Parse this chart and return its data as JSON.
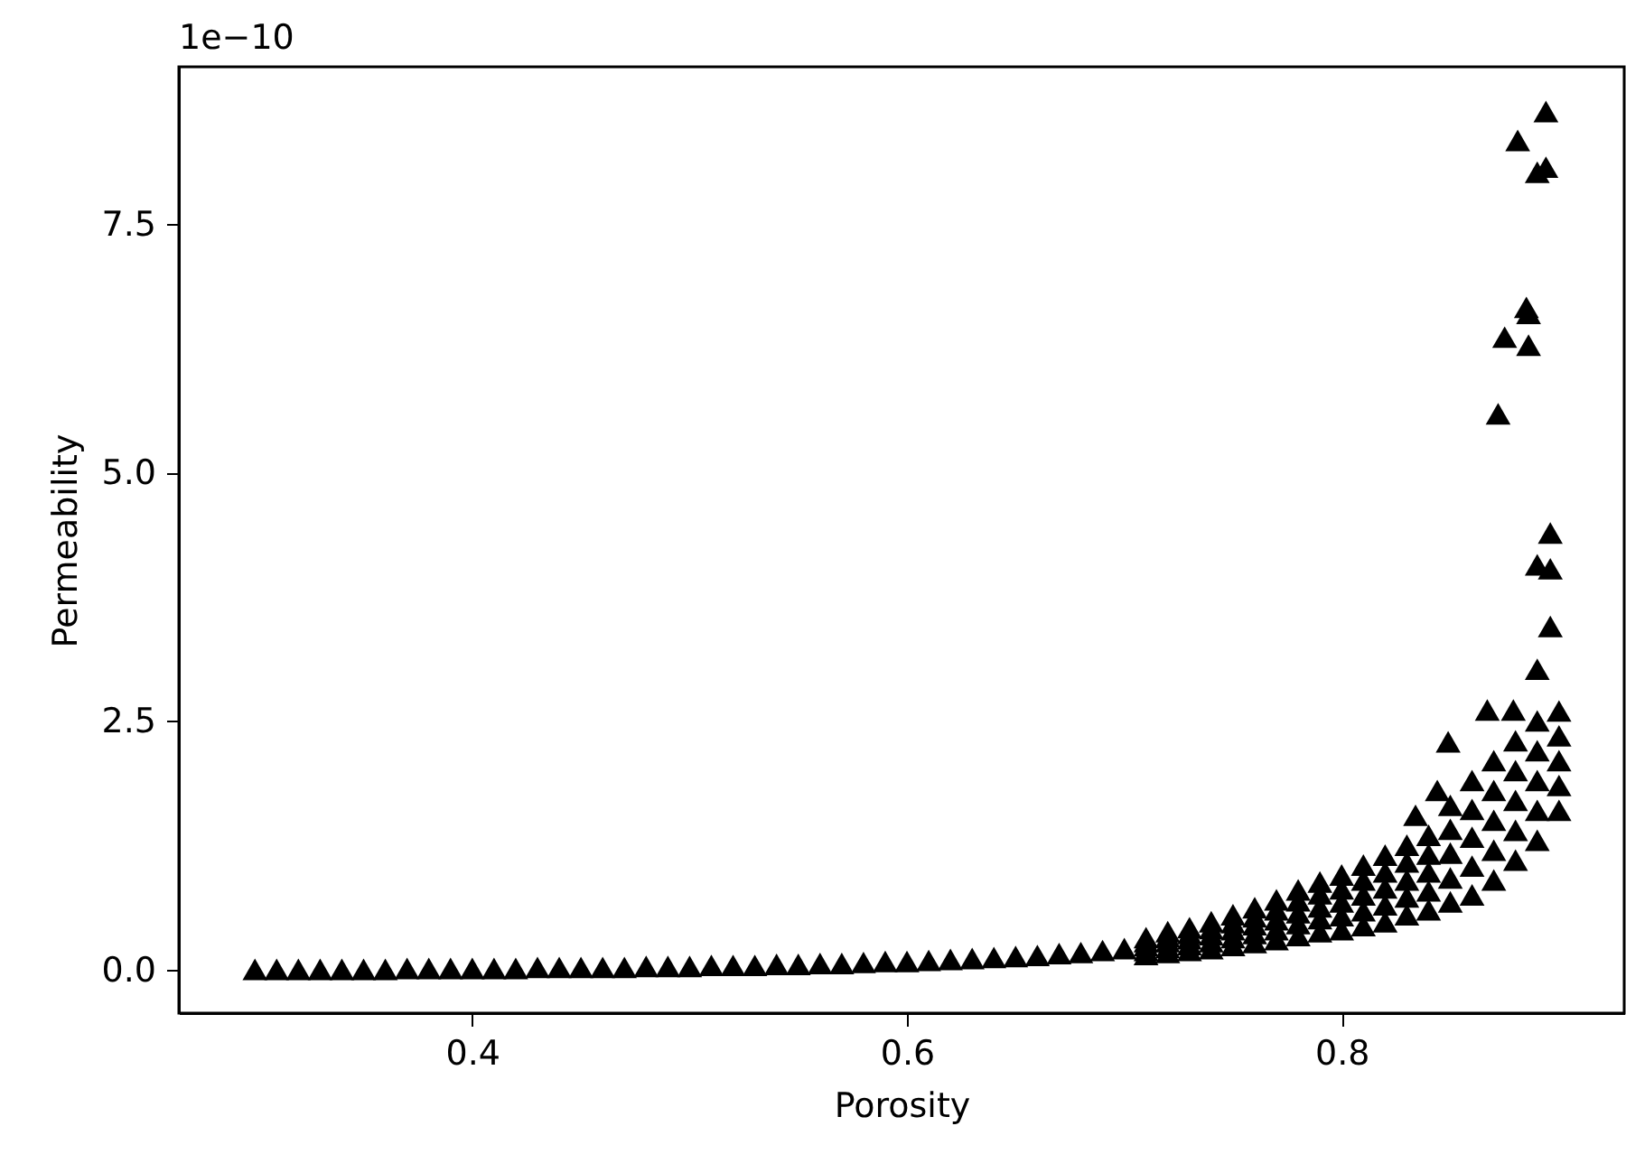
{
  "chart_data": {
    "type": "scatter",
    "xlabel": "Porosity",
    "ylabel": "Permeability",
    "marker": "triangle",
    "grid": false,
    "annotations": [
      "1e−10"
    ],
    "xlim": [
      0.265,
      0.93
    ],
    "xticks": [
      0.4,
      0.6,
      0.8
    ],
    "ylim": [
      -0.44,
      9.08
    ],
    "yticks": [
      {
        "value": 0,
        "label": "0.0"
      },
      2.5,
      {
        "value": 5,
        "label": "5.0"
      },
      7.5
    ],
    "series": [
      {
        "color": "#000000",
        "x": [
          0.3,
          0.31,
          0.32,
          0.33,
          0.34,
          0.35,
          0.36,
          0.37,
          0.38,
          0.39,
          0.4,
          0.41,
          0.42,
          0.43,
          0.44,
          0.45,
          0.46,
          0.47,
          0.48,
          0.49,
          0.5,
          0.51,
          0.52,
          0.53,
          0.54,
          0.55,
          0.56,
          0.57,
          0.58,
          0.59,
          0.6,
          0.61,
          0.62,
          0.63,
          0.64,
          0.65,
          0.66,
          0.67,
          0.68,
          0.69,
          0.7,
          0.71,
          0.71,
          0.71,
          0.71,
          0.71,
          0.72,
          0.72,
          0.72,
          0.72,
          0.72,
          0.73,
          0.73,
          0.73,
          0.73,
          0.73,
          0.74,
          0.74,
          0.74,
          0.74,
          0.74,
          0.75,
          0.75,
          0.75,
          0.75,
          0.75,
          0.76,
          0.76,
          0.76,
          0.76,
          0.76,
          0.77,
          0.77,
          0.77,
          0.77,
          0.77,
          0.78,
          0.78,
          0.78,
          0.78,
          0.78,
          0.79,
          0.79,
          0.79,
          0.79,
          0.79,
          0.8,
          0.8,
          0.8,
          0.8,
          0.8,
          0.81,
          0.81,
          0.81,
          0.81,
          0.81,
          0.82,
          0.82,
          0.82,
          0.82,
          0.82,
          0.83,
          0.83,
          0.83,
          0.83,
          0.83,
          0.84,
          0.84,
          0.84,
          0.84,
          0.84,
          0.85,
          0.85,
          0.85,
          0.85,
          0.85,
          0.86,
          0.86,
          0.86,
          0.86,
          0.86,
          0.87,
          0.87,
          0.87,
          0.87,
          0.87,
          0.88,
          0.88,
          0.88,
          0.88,
          0.88,
          0.89,
          0.89,
          0.89,
          0.89,
          0.89,
          0.9,
          0.9,
          0.9,
          0.9,
          0.9,
          0.894,
          0.881,
          0.89,
          0.894,
          0.885,
          0.886,
          0.875,
          0.886,
          0.872,
          0.896,
          0.89,
          0.896,
          0.896,
          0.89,
          0.849,
          0.867,
          0.879,
          0.844,
          0.834
        ],
        "values": [
          0.0,
          0.0,
          0.0,
          0.0,
          0.0,
          0.0,
          0.0,
          0.01,
          0.01,
          0.01,
          0.01,
          0.01,
          0.01,
          0.02,
          0.02,
          0.02,
          0.02,
          0.02,
          0.03,
          0.03,
          0.03,
          0.04,
          0.04,
          0.04,
          0.05,
          0.05,
          0.06,
          0.06,
          0.07,
          0.08,
          0.08,
          0.09,
          0.1,
          0.11,
          0.12,
          0.13,
          0.14,
          0.16,
          0.17,
          0.19,
          0.21,
          0.15,
          0.19,
          0.24,
          0.28,
          0.32,
          0.17,
          0.22,
          0.28,
          0.33,
          0.38,
          0.19,
          0.25,
          0.31,
          0.36,
          0.42,
          0.21,
          0.28,
          0.35,
          0.41,
          0.48,
          0.24,
          0.32,
          0.4,
          0.47,
          0.55,
          0.27,
          0.36,
          0.45,
          0.53,
          0.62,
          0.3,
          0.4,
          0.5,
          0.6,
          0.7,
          0.34,
          0.46,
          0.57,
          0.69,
          0.8,
          0.38,
          0.51,
          0.63,
          0.76,
          0.88,
          0.4,
          0.54,
          0.68,
          0.81,
          0.95,
          0.44,
          0.59,
          0.75,
          0.9,
          1.05,
          0.48,
          0.65,
          0.82,
          0.98,
          1.15,
          0.55,
          0.73,
          0.9,
          1.08,
          1.25,
          0.6,
          0.79,
          0.98,
          1.16,
          1.35,
          0.68,
          0.92,
          1.17,
          1.41,
          1.65,
          0.75,
          1.04,
          1.33,
          1.61,
          1.9,
          0.9,
          1.2,
          1.5,
          1.8,
          2.1,
          1.1,
          1.4,
          1.7,
          2.0,
          2.3,
          1.3,
          1.6,
          1.9,
          2.2,
          2.5,
          1.6,
          1.85,
          2.1,
          2.35,
          2.6,
          8.63,
          8.34,
          8.02,
          8.07,
          6.66,
          6.6,
          6.36,
          6.28,
          5.59,
          4.39,
          4.07,
          4.03,
          3.45,
          3.02,
          2.29,
          2.61,
          2.61,
          1.8,
          1.55
        ]
      }
    ]
  }
}
